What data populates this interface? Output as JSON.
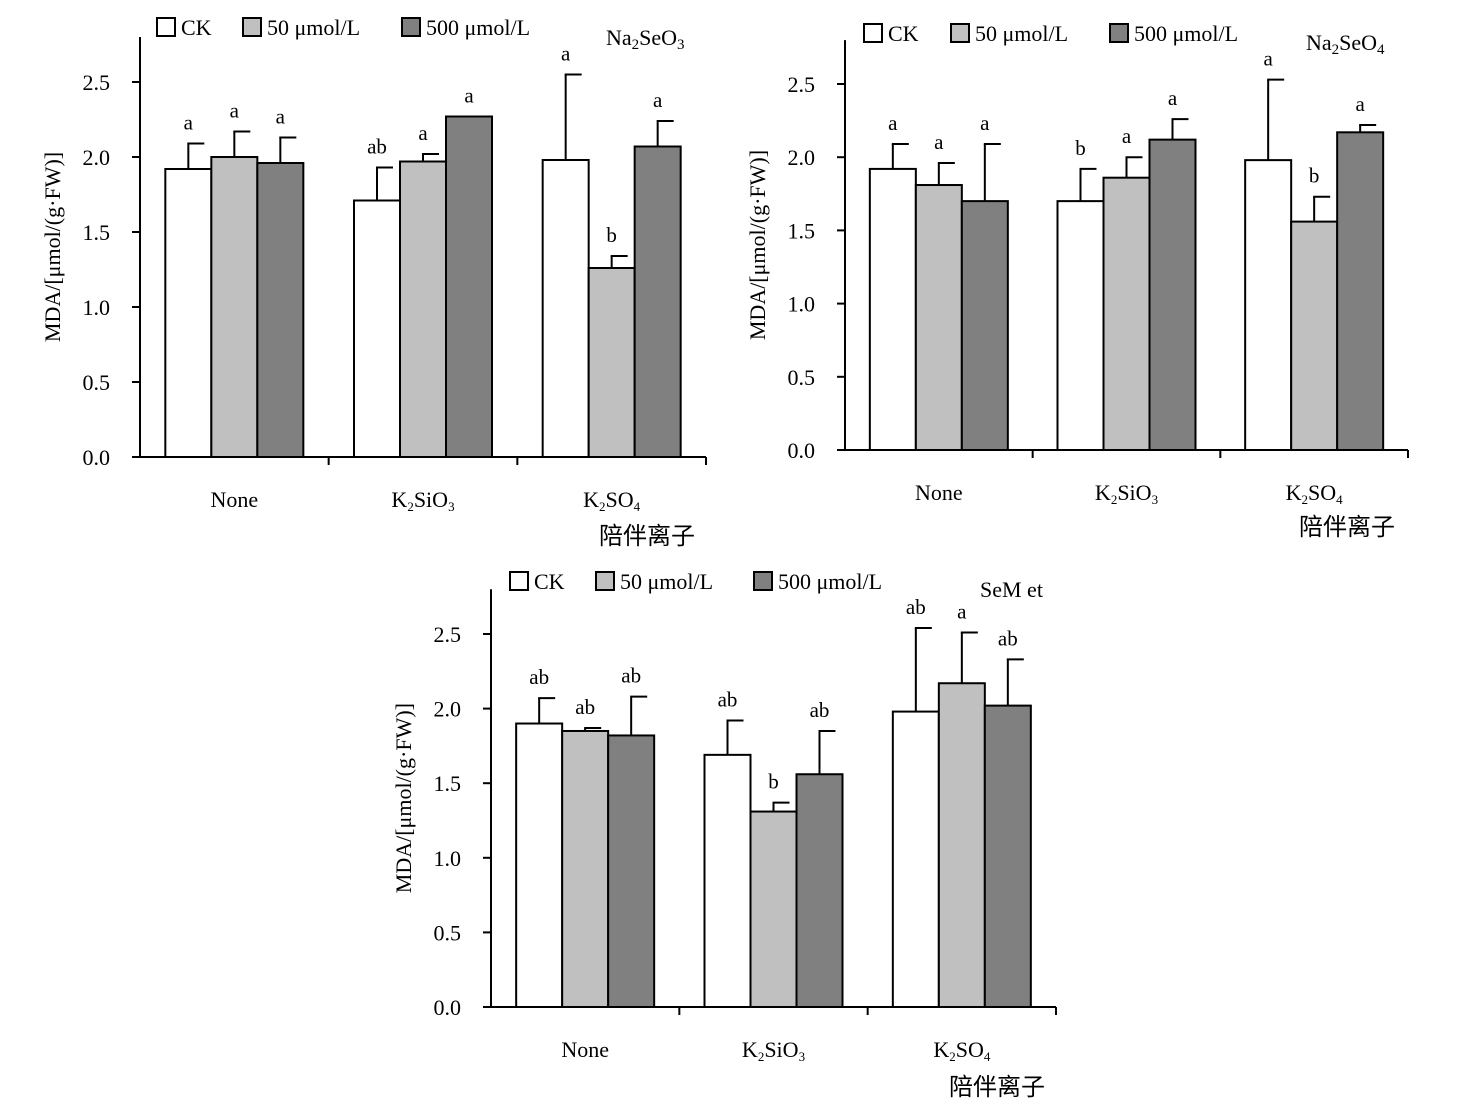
{
  "chart_data": [
    {
      "type": "bar",
      "title": "Na2SeO3",
      "title_sub": "2",
      "title_parts": [
        "Na",
        "2",
        "SeO",
        "3"
      ],
      "categories": [
        "None",
        "K2SiO3",
        "K2SO4"
      ],
      "categories_display": [
        [
          "None"
        ],
        [
          "K",
          "2",
          "SiO",
          "3"
        ],
        [
          "K",
          "2",
          "SO",
          "4"
        ]
      ],
      "xlabel": "陪伴离子",
      "ylabel": "MDA/[μmol/(g·FW)]",
      "ylim": [
        0,
        2.8
      ],
      "yticks": [
        0.0,
        0.5,
        1.0,
        1.5,
        2.0,
        2.5
      ],
      "ytick_labels": [
        "0.0",
        "0.5",
        "1.0",
        "1.5",
        "2.0",
        "2.5"
      ],
      "legend": [
        "CK",
        "50 μmol/L",
        "500 μmol/L"
      ],
      "legend_position": "top",
      "colors": [
        "#ffffff",
        "#c0c0c0",
        "#808080"
      ],
      "series": [
        {
          "name": "CK",
          "values": [
            1.92,
            1.71,
            1.98
          ],
          "errors": [
            0.17,
            0.22,
            0.57
          ],
          "letters": [
            "a",
            "ab",
            "a"
          ]
        },
        {
          "name": "50 μmol/L",
          "values": [
            2.0,
            1.97,
            1.26
          ],
          "errors": [
            0.17,
            0.05,
            0.08
          ],
          "letters": [
            "a",
            "a",
            "b"
          ]
        },
        {
          "name": "500 μmol/L",
          "values": [
            1.96,
            2.27,
            2.07
          ],
          "errors": [
            0.17,
            0.0,
            0.17
          ],
          "letters": [
            "a",
            "a",
            "a"
          ]
        }
      ]
    },
    {
      "type": "bar",
      "title": "Na2SeO4",
      "title_parts": [
        "Na",
        "2",
        "SeO",
        "4"
      ],
      "categories": [
        "None",
        "K2SiO3",
        "K2SO4"
      ],
      "categories_display": [
        [
          "None"
        ],
        [
          "K",
          "2",
          "SiO",
          "3"
        ],
        [
          "K",
          "2",
          "SO",
          "4"
        ]
      ],
      "xlabel": "陪伴离子",
      "ylabel": "MDA/[μmol/(g·FW)]",
      "ylim": [
        0,
        2.8
      ],
      "yticks": [
        0.0,
        0.5,
        1.0,
        1.5,
        2.0,
        2.5
      ],
      "ytick_labels": [
        "0.0",
        "0.5",
        "1.0",
        "1.5",
        "2.0",
        "2.5"
      ],
      "legend": [
        "CK",
        "50 μmol/L",
        "500 μmol/L"
      ],
      "legend_position": "top",
      "colors": [
        "#ffffff",
        "#c0c0c0",
        "#808080"
      ],
      "series": [
        {
          "name": "CK",
          "values": [
            1.92,
            1.7,
            1.98
          ],
          "errors": [
            0.17,
            0.22,
            0.55
          ],
          "letters": [
            "a",
            "b",
            "a"
          ]
        },
        {
          "name": "50 μmol/L",
          "values": [
            1.81,
            1.86,
            1.56
          ],
          "errors": [
            0.15,
            0.14,
            0.17
          ],
          "letters": [
            "a",
            "a",
            "b"
          ]
        },
        {
          "name": "500 μmol/L",
          "values": [
            1.7,
            2.12,
            2.17
          ],
          "errors": [
            0.39,
            0.14,
            0.05
          ],
          "letters": [
            "a",
            "a",
            "a"
          ]
        }
      ]
    },
    {
      "type": "bar",
      "title": "SeMet",
      "title_parts": [
        "SeM et"
      ],
      "categories": [
        "None",
        "K2SiO3",
        "K2SO4"
      ],
      "categories_display": [
        [
          "None"
        ],
        [
          "K",
          "2",
          "SiO",
          "3"
        ],
        [
          "K",
          "2",
          "SO",
          "4"
        ]
      ],
      "xlabel": "陪伴离子",
      "ylabel": "MDA/[μmol/(g·FW)]",
      "ylim": [
        0,
        2.8
      ],
      "yticks": [
        0.0,
        0.5,
        1.0,
        1.5,
        2.0,
        2.5
      ],
      "ytick_labels": [
        "0.0",
        "0.5",
        "1.0",
        "1.5",
        "2.0",
        "2.5"
      ],
      "legend": [
        "CK",
        "50 μmol/L",
        "500 μmol/L"
      ],
      "legend_position": "top",
      "colors": [
        "#ffffff",
        "#c0c0c0",
        "#808080"
      ],
      "series": [
        {
          "name": "CK",
          "values": [
            1.9,
            1.69,
            1.98
          ],
          "errors": [
            0.17,
            0.23,
            0.56
          ],
          "letters": [
            "ab",
            "ab",
            "ab"
          ]
        },
        {
          "name": "50 μmol/L",
          "values": [
            1.85,
            1.31,
            2.17
          ],
          "errors": [
            0.02,
            0.06,
            0.34
          ],
          "letters": [
            "ab",
            "b",
            "a"
          ]
        },
        {
          "name": "500 μmol/L",
          "values": [
            1.82,
            1.56,
            2.02
          ],
          "errors": [
            0.26,
            0.29,
            0.31
          ],
          "letters": [
            "ab",
            "ab",
            "ab"
          ]
        }
      ]
    }
  ]
}
